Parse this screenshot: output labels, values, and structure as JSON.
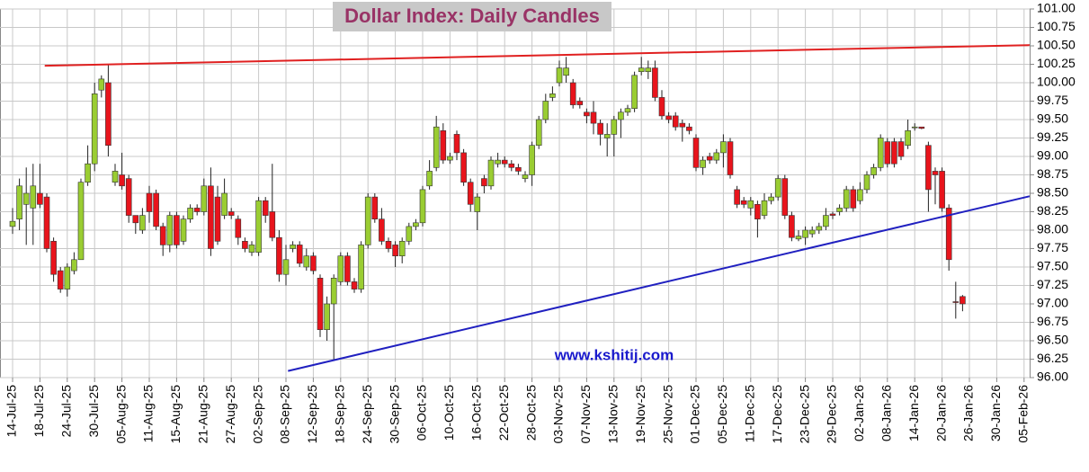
{
  "chart_data": {
    "type": "candlestick",
    "title": "Dollar Index: Daily Candles",
    "annotation": "www.kshitij.com",
    "up_color": "#9acd32",
    "down_color": "#e8141c",
    "grid": true,
    "categories": [
      "14-Jul-25",
      null,
      null,
      null,
      "18-Jul-25",
      null,
      null,
      null,
      "24-Jul-25",
      null,
      null,
      null,
      "30-Jul-25",
      null,
      null,
      null,
      "05-Aug-25",
      null,
      null,
      null,
      "11-Aug-25",
      null,
      null,
      null,
      "15-Aug-25",
      null,
      null,
      null,
      "21-Aug-25",
      null,
      null,
      null,
      "27-Aug-25",
      null,
      null,
      null,
      "02-Sep-25",
      null,
      null,
      null,
      "08-Sep-25",
      null,
      null,
      null,
      "12-Sep-25",
      null,
      null,
      null,
      "18-Sep-25",
      null,
      null,
      null,
      "24-Sep-25",
      null,
      null,
      null,
      "30-Sep-25",
      null,
      null,
      null,
      "06-Oct-25",
      null,
      null,
      null,
      "10-Oct-25",
      null,
      null,
      null,
      "16-Oct-25",
      null,
      null,
      null,
      "22-Oct-25",
      null,
      null,
      null,
      "28-Oct-25",
      null,
      null,
      null,
      "03-Nov-25",
      null,
      null,
      null,
      "07-Nov-25",
      null,
      null,
      null,
      "13-Nov-25",
      null,
      null,
      null,
      "19-Nov-25",
      null,
      null,
      null,
      "25-Nov-25",
      null,
      null,
      null,
      "01-Dec-25",
      null,
      null,
      null,
      "05-Dec-25",
      null,
      null,
      null,
      "11-Dec-25",
      null,
      null,
      null,
      "17-Dec-25",
      null,
      null,
      null,
      "23-Dec-25",
      null,
      null,
      null,
      "29-Dec-25",
      null,
      null,
      null,
      "02-Jan-26",
      null,
      null,
      null,
      "08-Jan-26",
      null,
      null,
      null,
      "14-Jan-26",
      null,
      null,
      null,
      "20-Jan-26",
      null,
      null,
      null,
      "26-Jan-26",
      null,
      null,
      null,
      "30-Jan-26",
      null,
      null,
      null,
      "05-Feb-26"
    ],
    "open": [
      98.05,
      98.15,
      98.35,
      98.3,
      98.5,
      98.45,
      97.85,
      97.45,
      97.2,
      97.45,
      97.6,
      98.65,
      98.9,
      99.9,
      100.0,
      98.65,
      98.75,
      98.7,
      98.2,
      98.0,
      98.5,
      98.5,
      98.05,
      97.8,
      98.2,
      97.85,
      98.15,
      98.3,
      98.25,
      98.6,
      98.45,
      98.2,
      98.25,
      98.15,
      97.85,
      97.7,
      97.7,
      98.4,
      98.25,
      97.9,
      97.4,
      97.75,
      97.8,
      97.5,
      97.65,
      97.35,
      96.65,
      97.0,
      97.3,
      97.65,
      97.3,
      97.2,
      97.8,
      98.45,
      98.15,
      97.85,
      97.8,
      97.65,
      97.85,
      98.05,
      98.1,
      98.6,
      98.85,
      99.35,
      98.95,
      99.3,
      99.05,
      98.65,
      98.25,
      98.7,
      98.6,
      98.9,
      98.95,
      98.9,
      98.85,
      98.7,
      98.75,
      99.15,
      99.5,
      99.8,
      100.0,
      100.1,
      100.0,
      99.75,
      99.6,
      99.6,
      99.45,
      99.25,
      99.3,
      99.5,
      99.6,
      99.65,
      100.15,
      100.15,
      100.2,
      99.8,
      99.55,
      99.55,
      99.45,
      99.4,
      99.25,
      98.85,
      99.0,
      98.95,
      99.05,
      99.2,
      98.55,
      98.4,
      98.3,
      98.35,
      98.2,
      98.4,
      98.45,
      98.7,
      98.2,
      97.88,
      97.9,
      97.95,
      98.0,
      98.05,
      98.22,
      98.25,
      98.3,
      98.55,
      98.4,
      98.55,
      98.75,
      98.85,
      99.2,
      99.2,
      99.2,
      99.15,
      99.4,
      99.4,
      99.15,
      98.8,
      98.8,
      98.3,
      97.03,
      97.1,
      null,
      null,
      null,
      null,
      null,
      null,
      null,
      null,
      null
    ],
    "high": [
      98.3,
      98.7,
      98.85,
      98.9,
      98.9,
      98.5,
      97.9,
      97.5,
      97.55,
      97.7,
      98.7,
      99.15,
      100.0,
      100.1,
      100.25,
      98.9,
      99.05,
      98.75,
      98.2,
      98.3,
      98.6,
      98.55,
      98.1,
      98.25,
      98.25,
      98.2,
      98.35,
      98.35,
      98.7,
      98.85,
      98.6,
      98.7,
      98.3,
      98.2,
      97.9,
      97.85,
      98.45,
      98.45,
      98.9,
      98.0,
      97.8,
      97.85,
      97.85,
      97.75,
      97.7,
      97.4,
      97.1,
      97.4,
      97.7,
      97.7,
      97.35,
      97.85,
      98.5,
      98.5,
      98.3,
      97.9,
      97.85,
      97.9,
      98.1,
      98.15,
      98.6,
      98.95,
      99.55,
      99.45,
      99.05,
      99.35,
      99.1,
      98.7,
      98.5,
      98.75,
      99.0,
      99.05,
      99.0,
      98.95,
      98.9,
      98.8,
      99.2,
      99.55,
      99.85,
      99.95,
      100.3,
      100.35,
      100.05,
      99.8,
      99.65,
      99.75,
      99.5,
      99.45,
      99.55,
      99.65,
      99.7,
      100.15,
      100.35,
      100.3,
      100.3,
      99.9,
      99.6,
      99.6,
      99.5,
      99.45,
      99.3,
      99.0,
      99.05,
      99.1,
      99.3,
      99.25,
      98.6,
      98.45,
      98.45,
      98.4,
      98.5,
      98.5,
      98.75,
      98.75,
      98.25,
      98.0,
      98.05,
      98.05,
      98.1,
      98.3,
      98.25,
      98.35,
      98.6,
      98.6,
      98.65,
      98.8,
      98.9,
      99.3,
      99.25,
      99.25,
      99.25,
      99.5,
      99.45,
      99.4,
      99.2,
      98.85,
      98.85,
      98.35,
      97.3,
      97.12,
      null,
      null,
      null,
      null,
      null,
      null,
      null,
      null,
      null
    ],
    "low": [
      97.95,
      98.0,
      97.8,
      97.8,
      98.3,
      97.7,
      97.3,
      97.15,
      97.1,
      97.4,
      97.6,
      98.6,
      98.8,
      99.8,
      99.0,
      98.6,
      98.55,
      98.1,
      97.95,
      97.95,
      98.1,
      98.0,
      97.65,
      97.7,
      97.75,
      97.8,
      98.1,
      98.2,
      98.2,
      97.65,
      97.8,
      98.15,
      98.15,
      97.8,
      97.7,
      97.65,
      97.65,
      98.1,
      97.85,
      97.3,
      97.25,
      97.7,
      97.5,
      97.45,
      97.4,
      96.55,
      96.5,
      96.25,
      97.25,
      97.25,
      97.15,
      97.15,
      97.75,
      98.1,
      97.8,
      97.7,
      97.5,
      97.55,
      97.8,
      98.0,
      98.05,
      98.55,
      98.8,
      98.9,
      98.9,
      98.95,
      98.6,
      98.25,
      98.0,
      98.5,
      98.55,
      98.85,
      98.85,
      98.8,
      98.75,
      98.65,
      98.6,
      99.1,
      99.45,
      99.75,
      99.95,
      100.0,
      99.65,
      99.65,
      99.45,
      99.3,
      99.15,
      99.0,
      99.0,
      99.25,
      99.55,
      99.6,
      100.1,
      100.05,
      99.75,
      99.5,
      99.45,
      99.35,
      99.2,
      99.3,
      98.8,
      98.75,
      98.9,
      98.9,
      98.85,
      98.7,
      98.3,
      98.3,
      98.2,
      97.9,
      98.15,
      98.35,
      98.4,
      98.15,
      97.85,
      97.85,
      97.8,
      97.9,
      97.95,
      98.0,
      98.15,
      98.2,
      98.25,
      98.25,
      98.35,
      98.5,
      98.7,
      98.8,
      98.85,
      98.85,
      98.95,
      99.1,
      99.35,
      99.37,
      98.25,
      98.35,
      98.25,
      97.45,
      96.8,
      96.9,
      null,
      null,
      null,
      null,
      null,
      null,
      null,
      null,
      null
    ],
    "close": [
      98.12,
      98.6,
      98.5,
      98.6,
      98.35,
      97.75,
      97.4,
      97.2,
      97.5,
      97.6,
      98.65,
      98.9,
      99.85,
      100.05,
      99.15,
      98.8,
      98.6,
      98.2,
      98.1,
      98.2,
      98.25,
      98.05,
      97.8,
      98.2,
      97.8,
      98.15,
      98.3,
      98.25,
      98.6,
      97.75,
      97.85,
      98.5,
      98.2,
      97.9,
      97.75,
      97.8,
      98.4,
      98.2,
      97.9,
      97.4,
      97.6,
      97.8,
      97.55,
      97.65,
      97.45,
      96.65,
      97.0,
      97.35,
      97.65,
      97.3,
      97.2,
      97.8,
      98.45,
      98.15,
      97.85,
      97.75,
      97.65,
      97.85,
      98.05,
      98.1,
      98.55,
      98.8,
      99.4,
      98.95,
      99.0,
      99.05,
      98.65,
      98.35,
      98.45,
      98.6,
      98.95,
      98.95,
      98.9,
      98.85,
      98.8,
      98.75,
      99.15,
      99.5,
      99.75,
      99.85,
      100.2,
      100.2,
      99.7,
      99.7,
      99.55,
      99.45,
      99.3,
      99.3,
      99.5,
      99.6,
      99.65,
      100.1,
      100.2,
      100.2,
      99.8,
      99.55,
      99.5,
      99.4,
      99.4,
      99.35,
      98.85,
      98.95,
      98.95,
      99.05,
      99.2,
      98.75,
      98.35,
      98.35,
      98.4,
      98.15,
      98.4,
      98.45,
      98.7,
      98.2,
      97.9,
      97.92,
      98.0,
      98.0,
      98.05,
      98.2,
      98.2,
      98.3,
      98.55,
      98.3,
      98.55,
      98.75,
      98.85,
      99.25,
      98.9,
      98.9,
      99.0,
      99.35,
      99.4,
      99.38,
      98.55,
      98.75,
      98.3,
      97.6,
      97.02,
      97.0,
      null,
      null,
      null,
      null,
      null,
      null,
      null,
      null,
      null
    ],
    "ylim": [
      96,
      101
    ],
    "yticks": [
      {
        "value": 96,
        "label": "96.00"
      },
      96.25,
      {
        "value": 96.5,
        "label": "96.50"
      },
      96.75,
      {
        "value": 97,
        "label": "97.00"
      },
      97.25,
      {
        "value": 97.5,
        "label": "97.50"
      },
      97.75,
      {
        "value": 98,
        "label": "98.00"
      },
      98.25,
      {
        "value": 98.5,
        "label": "98.50"
      },
      98.75,
      {
        "value": 99,
        "label": "99.00"
      },
      99.25,
      {
        "value": 99.5,
        "label": "99.50"
      },
      99.75,
      {
        "value": 100,
        "label": "100.00"
      },
      100.25,
      {
        "value": 100.5,
        "label": "100.50"
      },
      100.75,
      {
        "value": 101,
        "label": "101.00"
      }
    ],
    "lines": [
      {
        "color": "#e02020",
        "x": [
          4.7,
          148.8
        ],
        "y": [
          100.23,
          100.51
        ]
      },
      {
        "color": "#2020c0",
        "x": [
          40.3,
          148.8
        ],
        "y": [
          96.09,
          98.46
        ]
      }
    ]
  }
}
